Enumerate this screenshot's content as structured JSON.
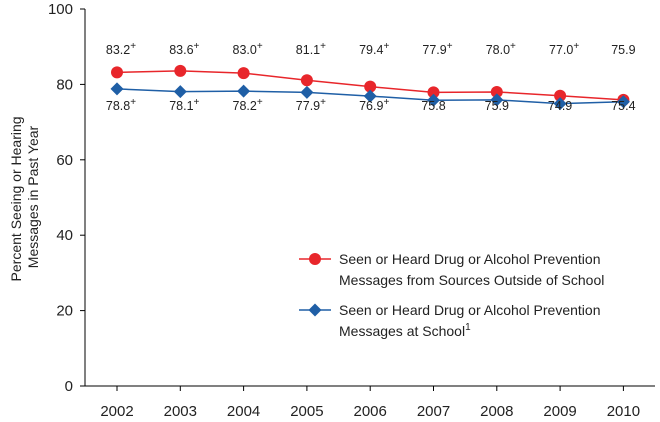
{
  "chart_data": {
    "type": "line",
    "title": "",
    "xlabel": "",
    "ylabel": [
      "Percent Seeing or Hearing",
      "Messages in Past Year"
    ],
    "ylim": [
      0,
      100
    ],
    "yticks": [
      "0",
      "20",
      "40",
      "60",
      "80",
      "100"
    ],
    "categories": [
      "2002",
      "2003",
      "2004",
      "2005",
      "2006",
      "2007",
      "2008",
      "2009",
      "2010"
    ],
    "series": [
      {
        "name": "Seen or Heard Drug or Alcohol Prevention Messages from Sources Outside of School",
        "legend_lines": [
          "Seen or Heard Drug or Alcohol Prevention",
          "Messages from Sources Outside of School"
        ],
        "marker": "circle",
        "color": "#e8262b",
        "values": [
          83.2,
          83.6,
          83.0,
          81.1,
          79.4,
          77.9,
          78.0,
          77.0,
          75.9
        ],
        "labels": [
          "83.2",
          "83.6",
          "83.0",
          "81.1",
          "79.4",
          "77.9",
          "78.0",
          "77.0",
          "75.9"
        ],
        "plus": [
          true,
          true,
          true,
          true,
          true,
          true,
          true,
          true,
          false
        ],
        "label_pos": "above"
      },
      {
        "name": "Seen or Heard Drug or Alcohol Prevention Messages at School",
        "legend_lines": [
          "Seen or Heard Drug or Alcohol Prevention",
          "Messages at School"
        ],
        "legend_footnote": "1",
        "marker": "diamond",
        "color": "#1f5fa6",
        "values": [
          78.8,
          78.1,
          78.2,
          77.9,
          76.9,
          75.8,
          75.9,
          74.9,
          75.4
        ],
        "labels": [
          "78.8",
          "78.1",
          "78.2",
          "77.9",
          "76.9",
          "75.8",
          "75.9",
          "74.9",
          "75.4"
        ],
        "plus": [
          true,
          true,
          true,
          true,
          true,
          false,
          false,
          false,
          false
        ],
        "label_pos": "below"
      }
    ],
    "plus_symbol": "+",
    "legend_position": "lower-right"
  }
}
